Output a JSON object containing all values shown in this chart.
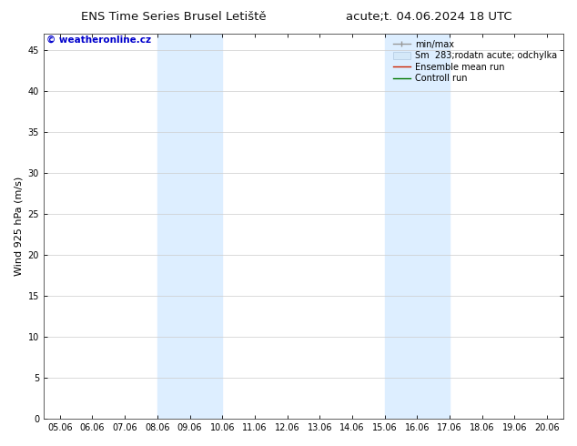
{
  "title_left": "ENS Time Series Brusel Letiště",
  "title_right": "acute;t. 04.06.2024 18 UTC",
  "ylabel": "Wind 925 hPa (m/s)",
  "watermark": "© weatheronline.cz",
  "watermark_color": "#0000cc",
  "x_tick_labels": [
    "05.06",
    "06.06",
    "07.06",
    "08.06",
    "09.06",
    "10.06",
    "11.06",
    "12.06",
    "13.06",
    "14.06",
    "15.06",
    "16.06",
    "17.06",
    "18.06",
    "19.06",
    "20.06"
  ],
  "x_tick_positions": [
    0,
    1,
    2,
    3,
    4,
    5,
    6,
    7,
    8,
    9,
    10,
    11,
    12,
    13,
    14,
    15
  ],
  "ylim": [
    0,
    47
  ],
  "yticks": [
    0,
    5,
    10,
    15,
    20,
    25,
    30,
    35,
    40,
    45
  ],
  "shaded_regions": [
    {
      "xstart": 3,
      "xend": 5,
      "color": "#ddeeff"
    },
    {
      "xstart": 10,
      "xend": 12,
      "color": "#ddeeff"
    }
  ],
  "bg_color": "#ffffff",
  "plot_bg_color": "#ffffff",
  "grid_color": "#cccccc",
  "title_fontsize": 9.5,
  "axis_fontsize": 7,
  "ylabel_fontsize": 8,
  "watermark_fontsize": 7.5,
  "legend_fontsize": 7
}
